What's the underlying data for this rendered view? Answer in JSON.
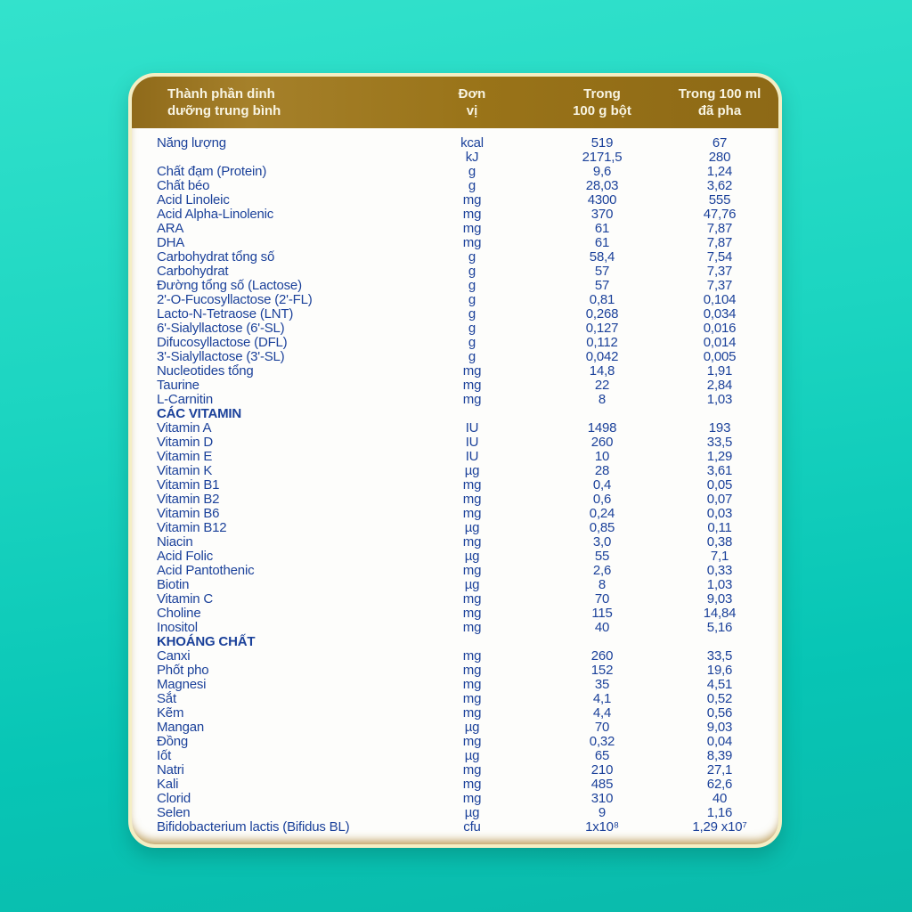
{
  "colors": {
    "background_teal_top": "#33e2cc",
    "background_teal_bottom": "#0bbaab",
    "header_gold": "#997318",
    "card_border_cream": "#f4eec4",
    "text_blue": "#1b419a",
    "header_text": "#f8f4e2"
  },
  "table": {
    "headers": {
      "component": "Thành phần dinh\ndưỡng trung bình",
      "unit": "Đơn\nvị",
      "per_100g": "Trong\n100 g bột",
      "per_100ml": "Trong 100 ml\nđã pha"
    },
    "rows": [
      {
        "label": "Năng lượng",
        "unit": "kcal",
        "per_100g": "519",
        "per_100ml": "67"
      },
      {
        "label": "",
        "unit": "kJ",
        "per_100g": "2171,5",
        "per_100ml": "280"
      },
      {
        "label": "Chất đạm (Protein)",
        "unit": "g",
        "per_100g": "9,6",
        "per_100ml": "1,24"
      },
      {
        "label": "Chất béo",
        "unit": "g",
        "per_100g": "28,03",
        "per_100ml": "3,62"
      },
      {
        "label": "Acid Linoleic",
        "unit": "mg",
        "per_100g": "4300",
        "per_100ml": "555"
      },
      {
        "label": "Acid Alpha-Linolenic",
        "unit": "mg",
        "per_100g": "370",
        "per_100ml": "47,76"
      },
      {
        "label": "ARA",
        "unit": "mg",
        "per_100g": "61",
        "per_100ml": "7,87"
      },
      {
        "label": "DHA",
        "unit": "mg",
        "per_100g": "61",
        "per_100ml": "7,87"
      },
      {
        "label": "Carbohydrat tổng số",
        "unit": "g",
        "per_100g": "58,4",
        "per_100ml": "7,54"
      },
      {
        "label": "Carbohydrat",
        "unit": "g",
        "per_100g": "57",
        "per_100ml": "7,37"
      },
      {
        "label": "Đường tổng số (Lactose)",
        "unit": "g",
        "per_100g": "57",
        "per_100ml": "7,37"
      },
      {
        "label": "2'-O-Fucosyllactose (2'-FL)",
        "unit": "g",
        "per_100g": "0,81",
        "per_100ml": "0,104"
      },
      {
        "label": "Lacto-N-Tetraose (LNT)",
        "unit": "g",
        "per_100g": "0,268",
        "per_100ml": "0,034"
      },
      {
        "label": "6'-Sialyllactose (6'-SL)",
        "unit": "g",
        "per_100g": "0,127",
        "per_100ml": "0,016"
      },
      {
        "label": "Difucosyllactose (DFL)",
        "unit": "g",
        "per_100g": "0,112",
        "per_100ml": "0,014"
      },
      {
        "label": "3'-Sialyllactose (3'-SL)",
        "unit": "g",
        "per_100g": "0,042",
        "per_100ml": "0,005"
      },
      {
        "label": "Nucleotides tổng",
        "unit": "mg",
        "per_100g": "14,8",
        "per_100ml": "1,91"
      },
      {
        "label": "Taurine",
        "unit": "mg",
        "per_100g": "22",
        "per_100ml": "2,84"
      },
      {
        "label": "L-Carnitin",
        "unit": "mg",
        "per_100g": "8",
        "per_100ml": "1,03"
      },
      {
        "section": "CÁC VITAMIN"
      },
      {
        "label": "Vitamin A",
        "unit": "IU",
        "per_100g": "1498",
        "per_100ml": "193"
      },
      {
        "label": "Vitamin D",
        "unit": "IU",
        "per_100g": "260",
        "per_100ml": "33,5"
      },
      {
        "label": "Vitamin E",
        "unit": "IU",
        "per_100g": "10",
        "per_100ml": "1,29"
      },
      {
        "label": "Vitamin K",
        "unit": "µg",
        "per_100g": "28",
        "per_100ml": "3,61"
      },
      {
        "label": "Vitamin B1",
        "unit": "mg",
        "per_100g": "0,4",
        "per_100ml": "0,05"
      },
      {
        "label": "Vitamin B2",
        "unit": "mg",
        "per_100g": "0,6",
        "per_100ml": "0,07"
      },
      {
        "label": "Vitamin B6",
        "unit": "mg",
        "per_100g": "0,24",
        "per_100ml": "0,03"
      },
      {
        "label": "Vitamin B12",
        "unit": "µg",
        "per_100g": "0,85",
        "per_100ml": "0,11"
      },
      {
        "label": "Niacin",
        "unit": "mg",
        "per_100g": "3,0",
        "per_100ml": "0,38"
      },
      {
        "label": "Acid Folic",
        "unit": "µg",
        "per_100g": "55",
        "per_100ml": "7,1"
      },
      {
        "label": "Acid Pantothenic",
        "unit": "mg",
        "per_100g": "2,6",
        "per_100ml": "0,33"
      },
      {
        "label": "Biotin",
        "unit": "µg",
        "per_100g": "8",
        "per_100ml": "1,03"
      },
      {
        "label": "Vitamin C",
        "unit": "mg",
        "per_100g": "70",
        "per_100ml": "9,03"
      },
      {
        "label": "Choline",
        "unit": "mg",
        "per_100g": "115",
        "per_100ml": "14,84"
      },
      {
        "label": "Inositol",
        "unit": "mg",
        "per_100g": "40",
        "per_100ml": "5,16"
      },
      {
        "section": "KHOÁNG CHẤT"
      },
      {
        "label": "Canxi",
        "unit": "mg",
        "per_100g": "260",
        "per_100ml": "33,5"
      },
      {
        "label": "Phốt pho",
        "unit": "mg",
        "per_100g": "152",
        "per_100ml": "19,6"
      },
      {
        "label": "Magnesi",
        "unit": "mg",
        "per_100g": "35",
        "per_100ml": "4,51"
      },
      {
        "label": "Sắt",
        "unit": "mg",
        "per_100g": "4,1",
        "per_100ml": "0,52"
      },
      {
        "label": "Kẽm",
        "unit": "mg",
        "per_100g": "4,4",
        "per_100ml": "0,56"
      },
      {
        "label": "Mangan",
        "unit": "µg",
        "per_100g": "70",
        "per_100ml": "9,03"
      },
      {
        "label": "Đồng",
        "unit": "mg",
        "per_100g": "0,32",
        "per_100ml": "0,04"
      },
      {
        "label": "Iốt",
        "unit": "µg",
        "per_100g": "65",
        "per_100ml": "8,39"
      },
      {
        "label": "Natri",
        "unit": "mg",
        "per_100g": "210",
        "per_100ml": "27,1"
      },
      {
        "label": "Kali",
        "unit": "mg",
        "per_100g": "485",
        "per_100ml": "62,6"
      },
      {
        "label": "Clorid",
        "unit": "mg",
        "per_100g": "310",
        "per_100ml": "40"
      },
      {
        "label": "Selen",
        "unit": "µg",
        "per_100g": "9",
        "per_100ml": "1,16"
      },
      {
        "label": "Bifidobacterium lactis (Bifidus BL)",
        "unit": "cfu",
        "per_100g": "1x10⁸",
        "per_100ml": "1,29 x10⁷"
      }
    ]
  }
}
